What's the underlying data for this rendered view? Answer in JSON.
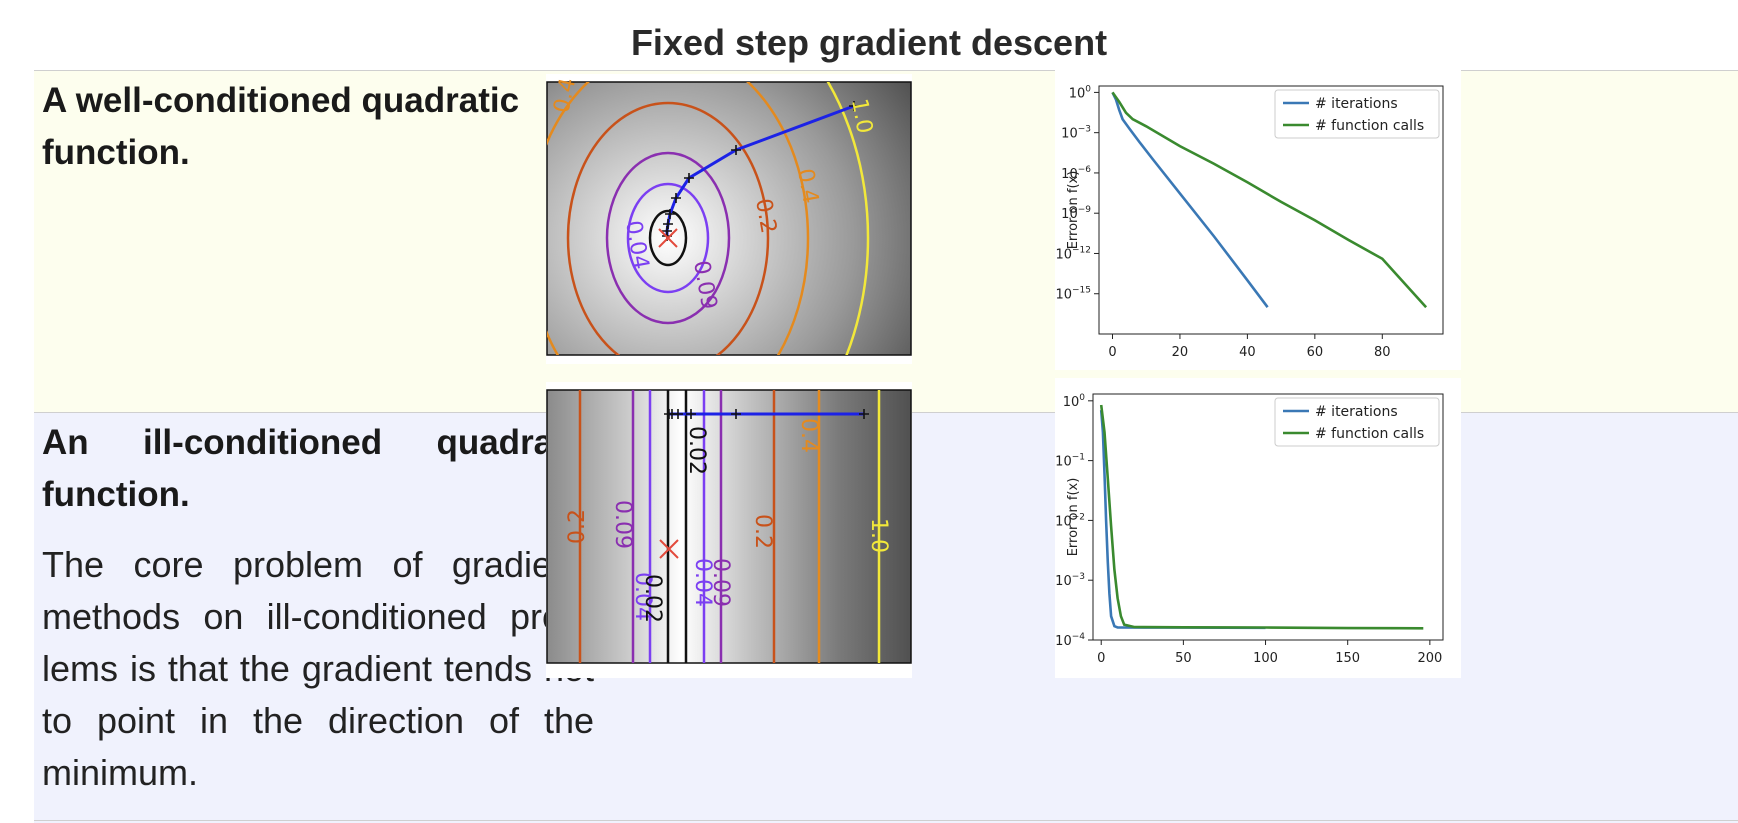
{
  "title": "Fixed step gradient descent",
  "rows": [
    {
      "name": "A well-conditioned quadratic function.",
      "contour_labels": [
        "0.4",
        "1.0",
        "0.4",
        "0.2",
        "0.04",
        "0.09"
      ],
      "chart_data": {
        "type": "line",
        "title": "",
        "xlabel": "",
        "ylabel": "Error on f(x)",
        "yscale": "log",
        "xticks": [
          "0",
          "20",
          "40",
          "60",
          "80"
        ],
        "yticks": [
          "10^0",
          "10^-3",
          "10^-6",
          "10^-9",
          "10^-12",
          "10^-15"
        ],
        "xlim": [
          -4,
          98
        ],
        "ylim": [
          1e-18,
          3
        ],
        "legend_position": "top-right",
        "series": [
          {
            "name": "# iterations",
            "color": "#3a78b5",
            "x": [
              0,
              1,
              2,
              3,
              5,
              8,
              12,
              20,
              30,
              40,
              46
            ],
            "y": [
              1,
              0.3,
              0.05,
              0.01,
              0.002,
              0.0002,
              1e-05,
              3e-08,
              2e-11,
              1e-14,
              1e-16
            ]
          },
          {
            "name": "# function calls",
            "color": "#3a8a2f",
            "x": [
              0,
              2,
              4,
              6,
              10,
              20,
              30,
              40,
              50,
              60,
              70,
              80,
              93
            ],
            "y": [
              1,
              0.2,
              0.03,
              0.01,
              0.003,
              0.0001,
              5e-06,
              2e-07,
              7e-09,
              3e-10,
              1e-11,
              4e-13,
              1e-16
            ]
          }
        ]
      }
    },
    {
      "name": "An ill-conditioned quadratic function.",
      "description": "The core problem of gradient-methods on ill-conditioned prob-lems is that the gradient tends not to point in the direction of the minimum.",
      "contour_labels": [
        "0.2",
        "0.09",
        "0.02",
        "0.04",
        "0.02",
        "0.04",
        "0.09",
        "0.4",
        "0.2",
        "1.0"
      ],
      "chart_data": {
        "type": "line",
        "title": "",
        "xlabel": "",
        "ylabel": "Error on f(x)",
        "yscale": "log",
        "xticks": [
          "0",
          "50",
          "100",
          "150",
          "200"
        ],
        "yticks": [
          "10^0",
          "10^-1",
          "10^-2",
          "10^-3",
          "10^-4"
        ],
        "xlim": [
          -5,
          208
        ],
        "ylim": [
          0.0001,
          1.3
        ],
        "legend_position": "top-right",
        "series": [
          {
            "name": "# iterations",
            "color": "#3a78b5",
            "x": [
              0,
              1,
              2,
              3,
              4,
              5,
              6,
              8,
              10,
              50,
              100
            ],
            "y": [
              0.7,
              0.3,
              0.06,
              0.01,
              0.002,
              0.0006,
              0.00025,
              0.00017,
              0.000162,
              0.000161,
              0.00016
            ]
          },
          {
            "name": "# function calls",
            "color": "#3a8a2f",
            "x": [
              0,
              2,
              4,
              6,
              8,
              10,
              12,
              14,
              20,
              50,
              100,
              150,
              196
            ],
            "y": [
              0.85,
              0.3,
              0.05,
              0.008,
              0.0015,
              0.0005,
              0.00025,
              0.00018,
              0.000165,
              0.000163,
              0.000162,
              0.000158,
              0.000157
            ]
          }
        ]
      }
    }
  ]
}
